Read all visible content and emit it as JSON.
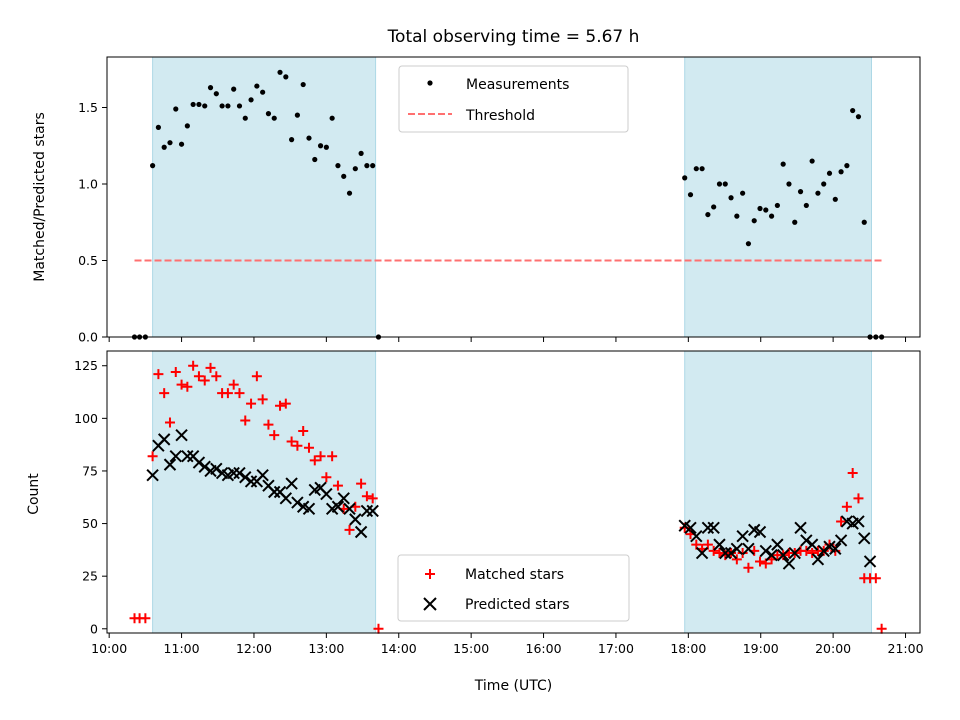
{
  "figure_title": "Total observing time = 5.67 h",
  "colors": {
    "band": "#add8e6",
    "measurement": "#000000",
    "threshold": "#ff7070",
    "matched": "#ff0000",
    "predicted": "#000000"
  },
  "chart_data": [
    {
      "type": "scatter",
      "title": "Total observing time = 5.67 h",
      "xlabel": "",
      "ylabel": "Matched/Predicted stars",
      "xlim": [
        9.97,
        21.2
      ],
      "ylim": [
        0,
        1.83
      ],
      "yticks": [
        0.0,
        0.5,
        1.0,
        1.5
      ],
      "ytick_labels": [
        "0.0",
        "0.5",
        "1.0",
        "1.5"
      ],
      "xtick_labels": [],
      "grid": false,
      "legend_position": "upper center",
      "legend": [
        "Measurements",
        "Threshold"
      ],
      "observing_windows_hours": [
        [
          10.6,
          13.68
        ],
        [
          17.95,
          20.53
        ]
      ],
      "threshold": {
        "value": 0.5,
        "x_range": [
          10.35,
          20.67
        ]
      },
      "series": [
        {
          "name": "Measurements",
          "x": [
            10.35,
            10.42,
            10.5,
            10.6,
            10.68,
            10.76,
            10.84,
            10.92,
            11.0,
            11.08,
            11.16,
            11.24,
            11.32,
            11.4,
            11.48,
            11.56,
            11.64,
            11.72,
            11.8,
            11.88,
            11.96,
            12.04,
            12.12,
            12.2,
            12.28,
            12.36,
            12.44,
            12.52,
            12.6,
            12.68,
            12.76,
            12.84,
            12.92,
            13.0,
            13.08,
            13.16,
            13.24,
            13.32,
            13.4,
            13.48,
            13.56,
            13.64,
            13.72,
            17.95,
            18.03,
            18.11,
            18.19,
            18.27,
            18.35,
            18.43,
            18.51,
            18.59,
            18.67,
            18.75,
            18.83,
            18.91,
            18.99,
            19.07,
            19.15,
            19.23,
            19.31,
            19.39,
            19.47,
            19.55,
            19.63,
            19.71,
            19.79,
            19.87,
            19.95,
            20.03,
            20.11,
            20.19,
            20.27,
            20.35,
            20.43,
            20.51,
            20.59,
            20.67
          ],
          "values": [
            0.0,
            0.0,
            0.0,
            1.12,
            1.37,
            1.24,
            1.27,
            1.49,
            1.26,
            1.38,
            1.52,
            1.52,
            1.51,
            1.63,
            1.59,
            1.51,
            1.51,
            1.62,
            1.51,
            1.43,
            1.55,
            1.64,
            1.6,
            1.46,
            1.43,
            1.73,
            1.7,
            1.29,
            1.45,
            1.65,
            1.3,
            1.16,
            1.25,
            1.24,
            1.43,
            1.12,
            1.05,
            0.94,
            1.1,
            1.2,
            1.12,
            1.12,
            0.0,
            1.04,
            0.93,
            1.1,
            1.1,
            0.8,
            0.85,
            1.0,
            1.0,
            0.91,
            0.79,
            0.94,
            0.61,
            0.76,
            0.84,
            0.83,
            0.79,
            0.86,
            1.13,
            1.0,
            0.75,
            0.95,
            0.86,
            1.15,
            0.94,
            1.0,
            1.07,
            0.9,
            1.08,
            1.12,
            1.48,
            1.44,
            0.75,
            0.0,
            0.0,
            0.0
          ]
        }
      ]
    },
    {
      "type": "scatter",
      "title": "",
      "xlabel": "Time (UTC)",
      "ylabel": "Count",
      "xlim": [
        9.97,
        21.2
      ],
      "ylim": [
        -2,
        132
      ],
      "yticks": [
        0,
        25,
        50,
        75,
        100,
        125
      ],
      "ytick_labels": [
        "0",
        "25",
        "50",
        "75",
        "100",
        "125"
      ],
      "xticks": [
        10,
        11,
        12,
        13,
        14,
        15,
        16,
        17,
        18,
        19,
        20,
        21
      ],
      "xtick_labels": [
        "10:00",
        "11:00",
        "12:00",
        "13:00",
        "14:00",
        "15:00",
        "16:00",
        "17:00",
        "18:00",
        "19:00",
        "20:00",
        "21:00"
      ],
      "grid": false,
      "legend_position": "lower center",
      "legend": [
        "Matched stars",
        "Predicted stars"
      ],
      "observing_windows_hours": [
        [
          10.6,
          13.68
        ],
        [
          17.95,
          20.53
        ]
      ],
      "series": [
        {
          "name": "Matched stars",
          "x": [
            10.35,
            10.42,
            10.5,
            10.6,
            10.68,
            10.76,
            10.84,
            10.92,
            11.0,
            11.08,
            11.16,
            11.24,
            11.32,
            11.4,
            11.48,
            11.56,
            11.64,
            11.72,
            11.8,
            11.88,
            11.96,
            12.04,
            12.12,
            12.2,
            12.28,
            12.36,
            12.44,
            12.52,
            12.6,
            12.68,
            12.76,
            12.84,
            12.92,
            13.0,
            13.08,
            13.16,
            13.24,
            13.32,
            13.4,
            13.48,
            13.56,
            13.64,
            13.72,
            17.95,
            18.03,
            18.11,
            18.19,
            18.27,
            18.35,
            18.43,
            18.51,
            18.59,
            18.67,
            18.75,
            18.83,
            18.91,
            18.99,
            19.07,
            19.15,
            19.23,
            19.31,
            19.39,
            19.47,
            19.55,
            19.63,
            19.71,
            19.79,
            19.87,
            19.95,
            20.03,
            20.11,
            20.19,
            20.27,
            20.35,
            20.43,
            20.51,
            20.59,
            20.67
          ],
          "values": [
            5,
            5,
            5,
            82,
            121,
            112,
            98,
            122,
            116,
            115,
            125,
            120,
            118,
            124,
            120,
            112,
            112,
            116,
            112,
            99,
            107,
            120,
            109,
            97,
            92,
            106,
            107,
            89,
            87,
            94,
            86,
            80,
            82,
            72,
            82,
            68,
            57,
            47,
            58,
            69,
            63,
            62,
            0,
            48,
            45,
            40,
            38,
            40,
            37,
            36,
            35,
            36,
            33,
            36,
            29,
            37,
            32,
            31,
            33,
            35,
            35,
            36,
            36,
            37,
            37,
            36,
            37,
            37,
            40,
            37,
            51,
            58,
            74,
            62,
            24,
            24,
            24,
            0
          ]
        },
        {
          "name": "Predicted stars",
          "x": [
            10.6,
            10.68,
            10.76,
            10.84,
            10.92,
            11.0,
            11.08,
            11.16,
            11.24,
            11.32,
            11.4,
            11.48,
            11.56,
            11.64,
            11.72,
            11.8,
            11.88,
            11.96,
            12.04,
            12.12,
            12.2,
            12.28,
            12.36,
            12.44,
            12.52,
            12.6,
            12.68,
            12.76,
            12.84,
            12.92,
            13.0,
            13.08,
            13.16,
            13.24,
            13.32,
            13.4,
            13.48,
            13.56,
            13.64,
            17.95,
            18.03,
            18.11,
            18.19,
            18.27,
            18.35,
            18.43,
            18.51,
            18.59,
            18.67,
            18.75,
            18.83,
            18.91,
            18.99,
            19.07,
            19.15,
            19.23,
            19.31,
            19.39,
            19.47,
            19.55,
            19.63,
            19.71,
            19.79,
            19.87,
            19.95,
            20.03,
            20.11,
            20.19,
            20.27,
            20.35,
            20.43,
            20.51
          ],
          "values": [
            73,
            87,
            90,
            78,
            82,
            92,
            82,
            82,
            79,
            77,
            75,
            76,
            74,
            73,
            74,
            74,
            72,
            70,
            70,
            73,
            68,
            65,
            65,
            62,
            69,
            60,
            58,
            57,
            66,
            67,
            64,
            57,
            58,
            62,
            57,
            52,
            46,
            56,
            56,
            49,
            48,
            44,
            36,
            48,
            48,
            40,
            36,
            36,
            38,
            44,
            38,
            47,
            46,
            37,
            35,
            40,
            35,
            31,
            36,
            48,
            42,
            40,
            33,
            37,
            39,
            38,
            42,
            51,
            50,
            51,
            43,
            32
          ]
        }
      ]
    }
  ]
}
